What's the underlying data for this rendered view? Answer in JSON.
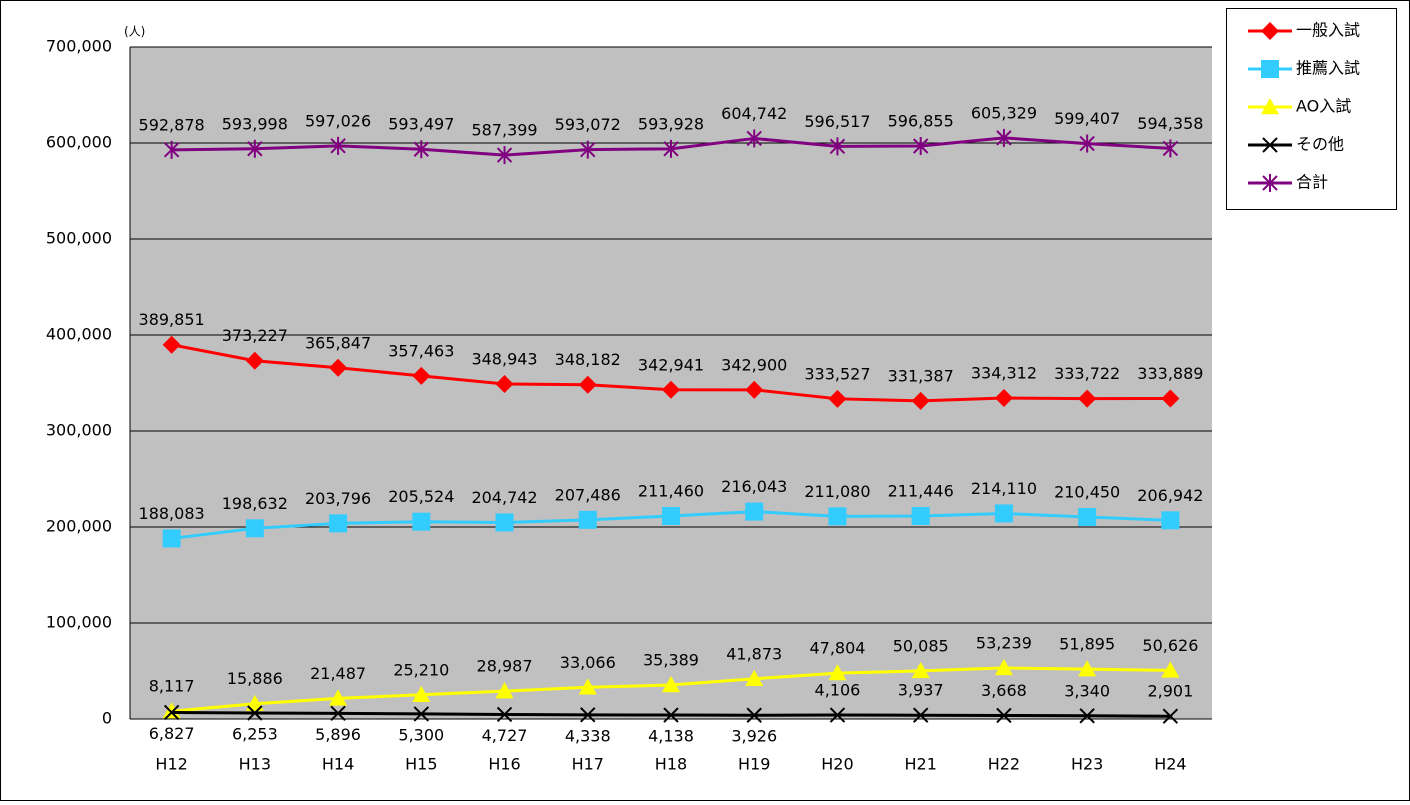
{
  "chart_data": {
    "type": "line",
    "unit_label": "(人)",
    "categories": [
      "H12",
      "H13",
      "H14",
      "H15",
      "H16",
      "H17",
      "H18",
      "H19",
      "H20",
      "H21",
      "H22",
      "H23",
      "H24"
    ],
    "ylim": [
      0,
      700000
    ],
    "yticks": [
      {
        "value": 0,
        "label": "0"
      },
      {
        "value": 100000,
        "label": "100,000"
      },
      {
        "value": 200000,
        "label": "200,000"
      },
      {
        "value": 300000,
        "label": "300,000"
      },
      {
        "value": 400000,
        "label": "400,000"
      },
      {
        "value": 500000,
        "label": "500,000"
      },
      {
        "value": 600000,
        "label": "600,000"
      },
      {
        "value": 700000,
        "label": "700,000"
      }
    ],
    "grid": true,
    "legend": "right",
    "plot_background": "#c0c0c0",
    "series": [
      {
        "name": "一般入試",
        "color": "#ff0000",
        "marker": "diamond",
        "values": [
          389851,
          373227,
          365847,
          357463,
          348943,
          348182,
          342941,
          342900,
          333527,
          331387,
          334312,
          333722,
          333889
        ],
        "value_labels": [
          "389,851",
          "373,227",
          "365,847",
          "357,463",
          "348,943",
          "348,182",
          "342,941",
          "342,900",
          "333,527",
          "331,387",
          "334,312",
          "333,722",
          "333,889"
        ]
      },
      {
        "name": "推薦入試",
        "color": "#33ccff",
        "marker": "square",
        "values": [
          188083,
          198632,
          203796,
          205524,
          204742,
          207486,
          211460,
          216043,
          211080,
          211446,
          214110,
          210450,
          206942
        ],
        "value_labels": [
          "188,083",
          "198,632",
          "203,796",
          "205,524",
          "204,742",
          "207,486",
          "211,460",
          "216,043",
          "211,080",
          "211,446",
          "214,110",
          "210,450",
          "206,942"
        ]
      },
      {
        "name": "AO入試",
        "color": "#ffff00",
        "marker": "triangle",
        "values": [
          8117,
          15886,
          21487,
          25210,
          28987,
          33066,
          35389,
          41873,
          47804,
          50085,
          53239,
          51895,
          50626
        ],
        "value_labels": [
          "8,117",
          "15,886",
          "21,487",
          "25,210",
          "28,987",
          "33,066",
          "35,389",
          "41,873",
          "47,804",
          "50,085",
          "53,239",
          "51,895",
          "50,626"
        ]
      },
      {
        "name": "その他",
        "color": "#000000",
        "marker": "x",
        "values": [
          6827,
          6253,
          5896,
          5300,
          4727,
          4338,
          4138,
          3926,
          4106,
          3937,
          3668,
          3340,
          2901
        ],
        "value_labels": [
          "6,827",
          "6,253",
          "5,896",
          "5,300",
          "4,727",
          "4,338",
          "4,138",
          "3,926",
          "4,106",
          "3,937",
          "3,668",
          "3,340",
          "2,901"
        ]
      },
      {
        "name": "合計",
        "color": "#800080",
        "marker": "asterisk",
        "values": [
          592878,
          593998,
          597026,
          593497,
          587399,
          593072,
          593928,
          604742,
          596517,
          596855,
          605329,
          599407,
          594358
        ],
        "value_labels": [
          "592,878",
          "593,998",
          "597,026",
          "593,497",
          "587,399",
          "593,072",
          "593,928",
          "604,742",
          "596,517",
          "596,855",
          "605,329",
          "599,407",
          "594,358"
        ]
      }
    ]
  }
}
